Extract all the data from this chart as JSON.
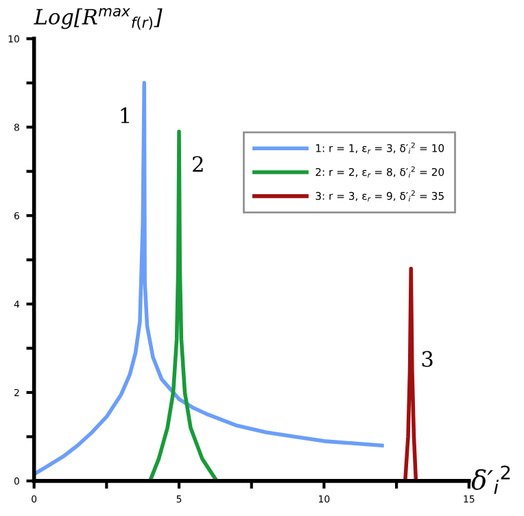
{
  "chart_data": {
    "type": "line",
    "ylabel": "Log[R$^{max}$$_{f(r)}$]",
    "xlabel": "δ′$_{i}$$^{2}$",
    "xlim": [
      0,
      15
    ],
    "ylim": [
      0,
      10
    ],
    "xticks": [
      0,
      {
        "value": 2.5,
        "label": null
      },
      5,
      {
        "value": 7.5,
        "label": null
      },
      10,
      {
        "value": 12.5,
        "label": null
      },
      15
    ],
    "yticks": [
      0,
      {
        "value": 1,
        "label": null
      },
      2,
      {
        "value": 3,
        "label": null
      },
      4,
      {
        "value": 5,
        "label": null
      },
      6,
      {
        "value": 7,
        "label": null
      },
      8,
      {
        "value": 9,
        "label": null
      },
      10
    ],
    "grid": false,
    "legend": "top right",
    "marker": "none",
    "line_style": "solid",
    "series": [
      {
        "name": "1: r = 1, ε$_{r}$ = 3, δ′$_{i}$$^{2}$ = 10",
        "color": "#6c9ef8",
        "x": [
          0,
          0.5,
          1,
          1.5,
          2,
          2.5,
          3,
          3.3,
          3.5,
          3.65,
          3.75,
          3.8,
          3.82,
          3.9,
          4.1,
          4.4,
          5,
          5.5,
          6,
          7,
          8,
          9,
          10,
          11,
          12
        ],
        "values": [
          0.15,
          0.35,
          0.55,
          0.8,
          1.1,
          1.45,
          1.95,
          2.4,
          2.9,
          3.6,
          5.8,
          9.0,
          4.5,
          3.5,
          2.8,
          2.3,
          1.85,
          1.65,
          1.5,
          1.25,
          1.1,
          1.0,
          0.9,
          0.85,
          0.8
        ]
      },
      {
        "name": "2: r = 2, ε$_{r}$ = 8, δ′$_{i}$$^{2}$ = 20",
        "color": "#1a9a3a",
        "x": [
          4,
          4.3,
          4.6,
          4.8,
          4.92,
          4.97,
          5,
          5.03,
          5.08,
          5.2,
          5.4,
          5.8,
          6.3
        ],
        "values": [
          0,
          0.5,
          1.2,
          2.0,
          3.2,
          4.8,
          7.9,
          4.8,
          3.2,
          2.0,
          1.2,
          0.5,
          0
        ]
      },
      {
        "name": "3: r = 3, ε$_{r}$ = 9, δ′$_{i}$$^{2}$ = 35",
        "color": "#a01010",
        "x": [
          12.8,
          12.9,
          12.96,
          13,
          13.04,
          13.1,
          13.17
        ],
        "values": [
          0,
          1.0,
          2.5,
          4.8,
          2.5,
          1.0,
          0
        ]
      }
    ],
    "annotations": [
      {
        "text": "1",
        "x": 3.8,
        "y": 9.0
      },
      {
        "text": "2",
        "x": 5,
        "y": 7.9
      },
      {
        "text": "3",
        "x": 13.04,
        "y": 2.5
      }
    ]
  }
}
